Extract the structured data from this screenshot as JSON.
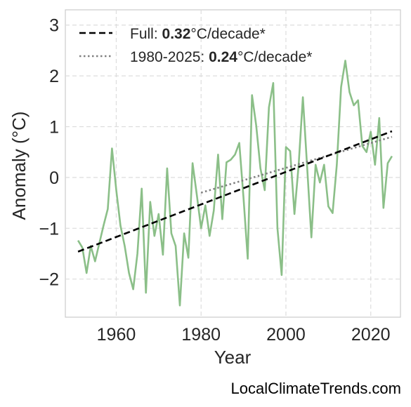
{
  "chart_data": {
    "type": "line",
    "xlabel": "Year",
    "ylabel": "Anomaly (°C)",
    "xlim": [
      1948,
      2027
    ],
    "ylim": [
      -2.75,
      3.3
    ],
    "xticks": [
      1960,
      1980,
      2000,
      2020
    ],
    "yticks": [
      -2,
      -1,
      0,
      1,
      2,
      3
    ],
    "ytick_labels": [
      "−2",
      "−1",
      "0",
      "1",
      "2",
      "3"
    ],
    "grid": true,
    "legend_position": "top-left",
    "series": [
      {
        "kind": "observed",
        "color": "#8bbf88",
        "x": [
          1951,
          1952,
          1953,
          1954,
          1955,
          1956,
          1957,
          1958,
          1959,
          1960,
          1961,
          1962,
          1963,
          1964,
          1965,
          1966,
          1967,
          1968,
          1969,
          1970,
          1971,
          1972,
          1973,
          1974,
          1975,
          1976,
          1977,
          1978,
          1979,
          1980,
          1981,
          1982,
          1983,
          1984,
          1985,
          1986,
          1987,
          1988,
          1989,
          1990,
          1991,
          1992,
          1993,
          1994,
          1995,
          1996,
          1997,
          1998,
          1999,
          2000,
          2001,
          2002,
          2003,
          2004,
          2005,
          2006,
          2007,
          2008,
          2009,
          2010,
          2011,
          2012,
          2013,
          2014,
          2015,
          2016,
          2017,
          2018,
          2019,
          2020,
          2021,
          2022,
          2023,
          2024,
          2025
        ],
        "y": [
          -1.24,
          -1.38,
          -1.88,
          -1.35,
          -1.65,
          -1.3,
          -0.95,
          -0.62,
          0.57,
          -0.25,
          -0.95,
          -1.35,
          -1.88,
          -2.2,
          -1.5,
          -0.22,
          -2.27,
          -0.48,
          -1.15,
          -0.72,
          -1.52,
          0.18,
          -1.1,
          -1.35,
          -2.52,
          -1.1,
          -1.58,
          0.28,
          -0.35,
          -1.0,
          -0.55,
          -1.15,
          -0.65,
          0.45,
          -0.82,
          0.3,
          0.35,
          0.45,
          0.68,
          -0.4,
          -1.6,
          1.62,
          1.02,
          0.18,
          -0.25,
          1.38,
          1.86,
          -1.0,
          -1.92,
          0.6,
          0.52,
          -0.72,
          0.25,
          1.58,
          0.2,
          -1.18,
          0.25,
          -0.1,
          0.25,
          -0.57,
          -0.7,
          0.25,
          1.78,
          2.3,
          1.68,
          1.42,
          1.52,
          0.62,
          0.5,
          0.9,
          0.25,
          1.17,
          -0.6,
          0.28,
          0.42
        ]
      },
      {
        "kind": "trend-full",
        "color": "#000000",
        "x": [
          1951,
          2025
        ],
        "y": [
          -1.46,
          0.91
        ]
      },
      {
        "kind": "trend-recent",
        "color": "#808080",
        "x": [
          1980,
          2025
        ],
        "y": [
          -0.3,
          0.8
        ]
      }
    ],
    "legend": [
      {
        "prefix": "Full: ",
        "value": "0.32",
        "suffix": "°C/decade*"
      },
      {
        "prefix": "1980-2025: ",
        "value": "0.24",
        "suffix": "°C/decade*"
      }
    ]
  },
  "watermark": "LocalClimateTrends.com"
}
